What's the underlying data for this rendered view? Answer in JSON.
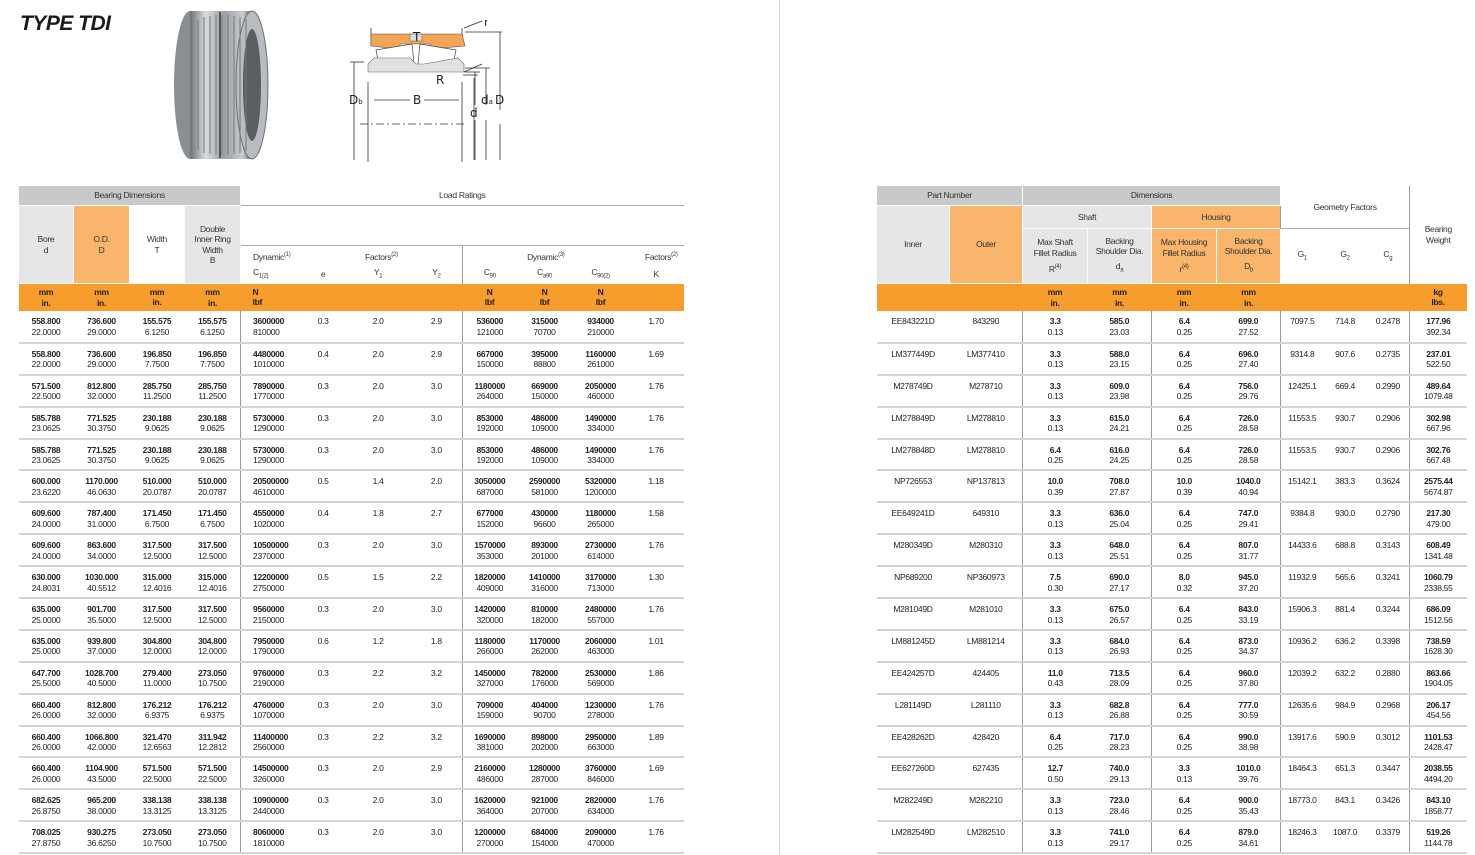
{
  "title": "TYPE TDI",
  "diagram_labels": {
    "T": "T",
    "r": "r",
    "R": "R",
    "B": "B",
    "Db": "D",
    "Db_sub": "b",
    "d": "d",
    "da": "d",
    "da_sub": "a",
    "D": "D"
  },
  "colors": {
    "orange": "#f79d2d",
    "light_orange": "#f9b56b",
    "gray_band": "#c9c9c9",
    "light_gray": "#e6e6e6"
  },
  "left_table": {
    "group_dimensions": "Bearing Dimensions",
    "group_load": "Load Ratings",
    "col_bore": [
      "Bore",
      "d"
    ],
    "col_od": [
      "O.D.",
      "D"
    ],
    "col_width": [
      "Width",
      "T"
    ],
    "col_double": [
      "Double",
      "Inner Ring",
      "Width",
      "B"
    ],
    "dynamic1": "Dynamic",
    "dynamic1_sup": "(1)",
    "factors2": "Factors",
    "factors2_sup": "(2)",
    "dynamic3": "Dynamic",
    "dynamic3_sup": "(3)",
    "factorsK": "Factors",
    "factorsK_sup": "(2)",
    "sym": {
      "c1": "C",
      "c1_sub": "1(2)",
      "e": "e",
      "y1": "Y",
      "y1_sub": "1",
      "y2": "Y",
      "y2_sub": "2",
      "c90": "C",
      "c90_sub": "90",
      "ca90": "C",
      "ca90_sub": "a90",
      "c902": "C",
      "c902_sub": "90(2)",
      "k": "K"
    },
    "units": {
      "mm": "mm",
      "in": "in.",
      "N": "N",
      "lbf": "lbf"
    },
    "rows": [
      [
        "558.800",
        "22.0000",
        "736.600",
        "29.0000",
        "155.575",
        "6.1250",
        "155.575",
        "6.1250",
        "3600000",
        "810000",
        "0.3",
        "2.0",
        "2.9",
        "536000",
        "121000",
        "315000",
        "70700",
        "934000",
        "210000",
        "1.70"
      ],
      [
        "558.800",
        "22.0000",
        "736.600",
        "29.0000",
        "196.850",
        "7.7500",
        "196.850",
        "7.7500",
        "4480000",
        "1010000",
        "0.4",
        "2.0",
        "2.9",
        "667000",
        "150000",
        "395000",
        "88800",
        "1160000",
        "261000",
        "1.69"
      ],
      [
        "571.500",
        "22.5000",
        "812.800",
        "32.0000",
        "285.750",
        "11.2500",
        "285.750",
        "11.2500",
        "7890000",
        "1770000",
        "0.3",
        "2.0",
        "3.0",
        "1180000",
        "264000",
        "669000",
        "150000",
        "2050000",
        "460000",
        "1.76"
      ],
      [
        "585.788",
        "23.0625",
        "771.525",
        "30.3750",
        "230.188",
        "9.0625",
        "230.188",
        "9.0625",
        "5730000",
        "1290000",
        "0.3",
        "2.0",
        "3.0",
        "853000",
        "192000",
        "486000",
        "109000",
        "1490000",
        "334000",
        "1.76"
      ],
      [
        "585.788",
        "23.0625",
        "771.525",
        "30.3750",
        "230.188",
        "9.0625",
        "230.188",
        "9.0625",
        "5730000",
        "1290000",
        "0.3",
        "2.0",
        "3.0",
        "853000",
        "192000",
        "486000",
        "109000",
        "1490000",
        "334000",
        "1.76"
      ],
      [
        "600.000",
        "23.6220",
        "1170.000",
        "46.0630",
        "510.000",
        "20.0787",
        "510.000",
        "20.0787",
        "20500000",
        "4610000",
        "0.5",
        "1.4",
        "2.0",
        "3050000",
        "687000",
        "2590000",
        "581000",
        "5320000",
        "1200000",
        "1.18"
      ],
      [
        "609.600",
        "24.0000",
        "787.400",
        "31.0000",
        "171.450",
        "6.7500",
        "171.450",
        "6.7500",
        "4550000",
        "1020000",
        "0.4",
        "1.8",
        "2.7",
        "677000",
        "152000",
        "430000",
        "96600",
        "1180000",
        "265000",
        "1.58"
      ],
      [
        "609.600",
        "24.0000",
        "863.600",
        "34.0000",
        "317.500",
        "12.5000",
        "317.500",
        "12.5000",
        "10500000",
        "2370000",
        "0.3",
        "2.0",
        "3.0",
        "1570000",
        "353000",
        "893000",
        "201000",
        "2730000",
        "614000",
        "1.76"
      ],
      [
        "630.000",
        "24.8031",
        "1030.000",
        "40.5512",
        "315.000",
        "12.4016",
        "315.000",
        "12.4016",
        "12200000",
        "2750000",
        "0.5",
        "1.5",
        "2.2",
        "1820000",
        "409000",
        "1410000",
        "316000",
        "3170000",
        "713000",
        "1.30"
      ],
      [
        "635.000",
        "25.0000",
        "901.700",
        "35.5000",
        "317.500",
        "12.5000",
        "317.500",
        "12.5000",
        "9560000",
        "2150000",
        "0.3",
        "2.0",
        "3.0",
        "1420000",
        "320000",
        "810000",
        "182000",
        "2480000",
        "557000",
        "1.76"
      ],
      [
        "635.000",
        "25.0000",
        "939.800",
        "37.0000",
        "304.800",
        "12.0000",
        "304.800",
        "12.0000",
        "7950000",
        "1790000",
        "0.6",
        "1.2",
        "1.8",
        "1180000",
        "266000",
        "1170000",
        "262000",
        "2060000",
        "463000",
        "1.01"
      ],
      [
        "647.700",
        "25.5000",
        "1028.700",
        "40.5000",
        "279.400",
        "11.0000",
        "273.050",
        "10.7500",
        "9760000",
        "2190000",
        "0.3",
        "2.2",
        "3.2",
        "1450000",
        "327000",
        "782000",
        "176000",
        "2530000",
        "569000",
        "1.86"
      ],
      [
        "660.400",
        "26.0000",
        "812.800",
        "32.0000",
        "176.212",
        "6.9375",
        "176.212",
        "6.9375",
        "4760000",
        "1070000",
        "0.3",
        "2.0",
        "3.0",
        "709000",
        "159000",
        "404000",
        "90700",
        "1230000",
        "278000",
        "1.76"
      ],
      [
        "660.400",
        "26.0000",
        "1066.800",
        "42.0000",
        "321.470",
        "12.6563",
        "311.942",
        "12.2812",
        "11400000",
        "2560000",
        "0.3",
        "2.2",
        "3.2",
        "1690000",
        "381000",
        "898000",
        "202000",
        "2950000",
        "663000",
        "1.89"
      ],
      [
        "660.400",
        "26.0000",
        "1104.900",
        "43.5000",
        "571.500",
        "22.5000",
        "571.500",
        "22.5000",
        "14500000",
        "3260000",
        "0.3",
        "2.0",
        "2.9",
        "2160000",
        "486000",
        "1280000",
        "287000",
        "3760000",
        "846000",
        "1.69"
      ],
      [
        "682.625",
        "26.8750",
        "965.200",
        "38.0000",
        "338.138",
        "13.3125",
        "338.138",
        "13.3125",
        "10900000",
        "2440000",
        "0.3",
        "2.0",
        "3.0",
        "1620000",
        "364000",
        "921000",
        "207000",
        "2820000",
        "634000",
        "1.76"
      ],
      [
        "708.025",
        "27.8750",
        "930.275",
        "36.6250",
        "273.050",
        "10.7500",
        "273.050",
        "10.7500",
        "8060000",
        "1810000",
        "0.3",
        "2.0",
        "3.0",
        "1200000",
        "270000",
        "684000",
        "154000",
        "2090000",
        "470000",
        "1.76"
      ]
    ]
  },
  "right_table": {
    "group_part": "Part Number",
    "group_dimensions": "Dimensions",
    "group_geometry": "Geometry Factors",
    "col_weight": [
      "Bearing",
      "Weight"
    ],
    "col_inner": "Inner",
    "col_outer": "Outer",
    "shaft": "Shaft",
    "housing": "Housing",
    "col_R": [
      "Max Shaft",
      "Fillet Radius",
      "R",
      "(4)"
    ],
    "col_da": [
      "Backing",
      "Shoulder Dia.",
      "d",
      "a"
    ],
    "col_r": [
      "Max Housing",
      "Fillet Radius",
      "r",
      "(4)"
    ],
    "col_Db": [
      "Backing",
      "Shoulder Dia.",
      "D",
      "b"
    ],
    "sym": {
      "g1": "G",
      "g1_sub": "1",
      "g2": "G",
      "g2_sub": "2",
      "cg": "C",
      "cg_sub": "g"
    },
    "units": {
      "mm": "mm",
      "in": "in.",
      "kg": "kg",
      "lbs": "lbs."
    },
    "rows": [
      [
        "EE843221D",
        "843290",
        "3.3",
        "0.13",
        "585.0",
        "23.03",
        "6.4",
        "0.25",
        "699.0",
        "27.52",
        "7097.5",
        "714.8",
        "0.2478",
        "177.96",
        "392.34"
      ],
      [
        "LM377449D",
        "LM377410",
        "3.3",
        "0.13",
        "588.0",
        "23.15",
        "6.4",
        "0.25",
        "696.0",
        "27.40",
        "9314.8",
        "907.6",
        "0.2735",
        "237.01",
        "522.50"
      ],
      [
        "M278749D",
        "M278710",
        "3.3",
        "0.13",
        "609.0",
        "23.98",
        "6.4",
        "0.25",
        "756.0",
        "29.76",
        "12425.1",
        "669.4",
        "0.2990",
        "489.64",
        "1079.48"
      ],
      [
        "LM278849D",
        "LM278810",
        "3.3",
        "0.13",
        "615.0",
        "24.21",
        "6.4",
        "0.25",
        "726.0",
        "28.58",
        "11553.5",
        "930.7",
        "0.2906",
        "302.98",
        "667.96"
      ],
      [
        "LM278848D",
        "LM278810",
        "6.4",
        "0.25",
        "616.0",
        "24.25",
        "6.4",
        "0.25",
        "726.0",
        "28.58",
        "11553.5",
        "930.7",
        "0.2906",
        "302.76",
        "667.48"
      ],
      [
        "NP726553",
        "NP137813",
        "10.0",
        "0.39",
        "708.0",
        "27.87",
        "10.0",
        "0.39",
        "1040.0",
        "40.94",
        "15142.1",
        "383.3",
        "0.3624",
        "2575.44",
        "5674.87"
      ],
      [
        "EE649241D",
        "649310",
        "3.3",
        "0.13",
        "636.0",
        "25.04",
        "6.4",
        "0.25",
        "747.0",
        "29.41",
        "9384.8",
        "930.0",
        "0.2790",
        "217.30",
        "479.00"
      ],
      [
        "M280349D",
        "M280310",
        "3.3",
        "0.13",
        "648.0",
        "25.51",
        "6.4",
        "0.25",
        "807.0",
        "31.77",
        "14433.6",
        "688.8",
        "0.3143",
        "608.49",
        "1341.48"
      ],
      [
        "NP689200",
        "NP360973",
        "7.5",
        "0.30",
        "690.0",
        "27.17",
        "8.0",
        "0.32",
        "945.0",
        "37.20",
        "11932.9",
        "565.6",
        "0.3241",
        "1060.79",
        "2338.55"
      ],
      [
        "M281049D",
        "M281010",
        "3.3",
        "0.13",
        "675.0",
        "26.57",
        "6.4",
        "0.25",
        "843.0",
        "33.19",
        "15906.3",
        "881.4",
        "0.3244",
        "686.09",
        "1512.56"
      ],
      [
        "LM881245D",
        "LM881214",
        "3.3",
        "0.13",
        "684.0",
        "26.93",
        "6.4",
        "0.25",
        "873.0",
        "34.37",
        "10936.2",
        "636.2",
        "0.3398",
        "738.59",
        "1628.30"
      ],
      [
        "EE424257D",
        "424405",
        "11.0",
        "0.43",
        "713.5",
        "28.09",
        "6.4",
        "0.25",
        "960.0",
        "37.80",
        "12039.2",
        "632.2",
        "0.2880",
        "863.66",
        "1904.05"
      ],
      [
        "L281149D",
        "L281110",
        "3.3",
        "0.13",
        "682.8",
        "26.88",
        "6.4",
        "0.25",
        "777.0",
        "30.59",
        "12635.6",
        "984.9",
        "0.2968",
        "206.17",
        "454.56"
      ],
      [
        "EE428262D",
        "428420",
        "6.4",
        "0.25",
        "717.0",
        "28.23",
        "6.4",
        "0.25",
        "990.0",
        "38.98",
        "13917.6",
        "590.9",
        "0.3012",
        "1101.53",
        "2428.47"
      ],
      [
        "EE627260D",
        "627435",
        "12.7",
        "0.50",
        "740.0",
        "29.13",
        "3.3",
        "0.13",
        "1010.0",
        "39.76",
        "18464.3",
        "651.3",
        "0.3447",
        "2038.55",
        "4494.20"
      ],
      [
        "M282249D",
        "M282210",
        "3.3",
        "0.13",
        "723.0",
        "28.46",
        "6.4",
        "0.25",
        "900.0",
        "35.43",
        "18773.0",
        "843.1",
        "0.3426",
        "843.10",
        "1858.77"
      ],
      [
        "LM282549D",
        "LM282510",
        "3.3",
        "0.13",
        "741.0",
        "29.17",
        "6.4",
        "0.25",
        "879.0",
        "34.61",
        "18246.3",
        "1087.0",
        "0.3379",
        "519.26",
        "1144.78"
      ]
    ]
  }
}
